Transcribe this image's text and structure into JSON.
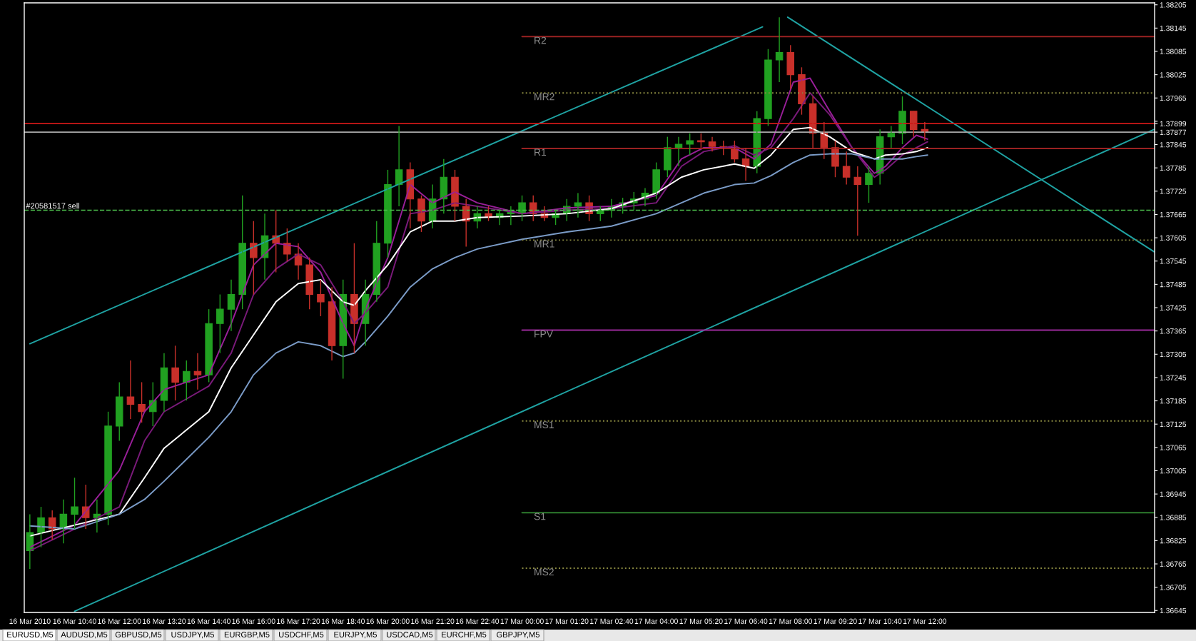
{
  "chart_data": {
    "type": "candlestick",
    "x": [
      "2010-03-16T09:20",
      "2010-03-16T09:40",
      "2010-03-16T10:00",
      "2010-03-16T10:20",
      "2010-03-16T10:40",
      "2010-03-16T11:00",
      "2010-03-16T11:20",
      "2010-03-16T11:40",
      "2010-03-16T12:00",
      "2010-03-16T12:20",
      "2010-03-16T12:40",
      "2010-03-16T13:00",
      "2010-03-16T13:20",
      "2010-03-16T13:40",
      "2010-03-16T14:00",
      "2010-03-16T14:20",
      "2010-03-16T14:40",
      "2010-03-16T15:00",
      "2010-03-16T15:20",
      "2010-03-16T15:40",
      "2010-03-16T16:00",
      "2010-03-16T16:20",
      "2010-03-16T16:40",
      "2010-03-16T17:00",
      "2010-03-16T17:20",
      "2010-03-16T17:40",
      "2010-03-16T18:00",
      "2010-03-16T18:20",
      "2010-03-16T18:40",
      "2010-03-16T19:00",
      "2010-03-16T19:20",
      "2010-03-16T19:40",
      "2010-03-16T20:00",
      "2010-03-16T20:20",
      "2010-03-16T20:40",
      "2010-03-16T21:00",
      "2010-03-16T21:20",
      "2010-03-16T21:40",
      "2010-03-16T22:00",
      "2010-03-16T22:20",
      "2010-03-16T22:40",
      "2010-03-16T23:00",
      "2010-03-16T23:20",
      "2010-03-16T23:40",
      "2010-03-17T00:00",
      "2010-03-17T00:20",
      "2010-03-17T00:40",
      "2010-03-17T01:00",
      "2010-03-17T01:20",
      "2010-03-17T01:40",
      "2010-03-17T02:00",
      "2010-03-17T02:20",
      "2010-03-17T02:40",
      "2010-03-17T03:00",
      "2010-03-17T03:20",
      "2010-03-17T03:40",
      "2010-03-17T04:00",
      "2010-03-17T04:20",
      "2010-03-17T04:40",
      "2010-03-17T05:00",
      "2010-03-17T05:20",
      "2010-03-17T05:40",
      "2010-03-17T06:00",
      "2010-03-17T06:20",
      "2010-03-17T06:40",
      "2010-03-17T07:00",
      "2010-03-17T07:20",
      "2010-03-17T07:40",
      "2010-03-17T08:00",
      "2010-03-17T08:20",
      "2010-03-17T08:40",
      "2010-03-17T09:00",
      "2010-03-17T09:20",
      "2010-03-17T09:40",
      "2010-03-17T10:00",
      "2010-03-17T10:20",
      "2010-03-17T10:40",
      "2010-03-17T11:00",
      "2010-03-17T11:20",
      "2010-03-17T11:40",
      "2010-03-17T12:00"
    ],
    "ohlc": [
      [
        1.36799,
        1.36893,
        1.36752,
        1.36846
      ],
      [
        1.36846,
        1.36912,
        1.36808,
        1.36884
      ],
      [
        1.36884,
        1.36903,
        1.36827,
        1.36855
      ],
      [
        1.36855,
        1.36931,
        1.36818,
        1.36893
      ],
      [
        1.36893,
        1.36987,
        1.36855,
        1.36912
      ],
      [
        1.36912,
        1.36969,
        1.36855,
        1.36884
      ],
      [
        1.36884,
        1.36931,
        1.36846,
        1.36893
      ],
      [
        1.36893,
        1.37157,
        1.36865,
        1.3712
      ],
      [
        1.3712,
        1.37233,
        1.37082,
        1.37195
      ],
      [
        1.37195,
        1.37289,
        1.37138,
        1.37176
      ],
      [
        1.37176,
        1.37233,
        1.37129,
        1.37157
      ],
      [
        1.37157,
        1.37233,
        1.3712,
        1.37186
      ],
      [
        1.37186,
        1.37308,
        1.37157,
        1.3727
      ],
      [
        1.3727,
        1.37327,
        1.37186,
        1.37233
      ],
      [
        1.37233,
        1.37289,
        1.37186,
        1.37261
      ],
      [
        1.37261,
        1.37308,
        1.37214,
        1.37252
      ],
      [
        1.37252,
        1.37421,
        1.37233,
        1.37384
      ],
      [
        1.37384,
        1.37459,
        1.37308,
        1.37421
      ],
      [
        1.37421,
        1.37497,
        1.37365,
        1.37459
      ],
      [
        1.37459,
        1.37714,
        1.37421,
        1.37591
      ],
      [
        1.37591,
        1.37648,
        1.37459,
        1.37554
      ],
      [
        1.37554,
        1.37667,
        1.37497,
        1.3761
      ],
      [
        1.3761,
        1.37676,
        1.37516,
        1.37591
      ],
      [
        1.37591,
        1.37629,
        1.37544,
        1.37563
      ],
      [
        1.37563,
        1.37591,
        1.37497,
        1.37535
      ],
      [
        1.37535,
        1.37554,
        1.37421,
        1.37459
      ],
      [
        1.37459,
        1.37497,
        1.37403,
        1.3744
      ],
      [
        1.3744,
        1.37478,
        1.37289,
        1.37327
      ],
      [
        1.37327,
        1.37497,
        1.37242,
        1.37459
      ],
      [
        1.37459,
        1.37591,
        1.37308,
        1.37384
      ],
      [
        1.37384,
        1.37497,
        1.37327,
        1.37459
      ],
      [
        1.37459,
        1.37648,
        1.3744,
        1.37591
      ],
      [
        1.37591,
        1.3778,
        1.37554,
        1.37742
      ],
      [
        1.37742,
        1.37893,
        1.37686,
        1.3778
      ],
      [
        1.3778,
        1.37799,
        1.37629,
        1.37705
      ],
      [
        1.37705,
        1.37714,
        1.3762,
        1.37648
      ],
      [
        1.37648,
        1.37742,
        1.37629,
        1.37705
      ],
      [
        1.37705,
        1.37808,
        1.37667,
        1.37761
      ],
      [
        1.37761,
        1.3778,
        1.37648,
        1.37686
      ],
      [
        1.37686,
        1.37705,
        1.37582,
        1.37648
      ],
      [
        1.37648,
        1.37686,
        1.37629,
        1.37667
      ],
      [
        1.37667,
        1.37686,
        1.37648,
        1.37657
      ],
      [
        1.37657,
        1.37676,
        1.37638,
        1.37667
      ],
      [
        1.37667,
        1.37686,
        1.37638,
        1.37676
      ],
      [
        1.37667,
        1.37714,
        1.37648,
        1.37695
      ],
      [
        1.37695,
        1.37714,
        1.37648,
        1.37667
      ],
      [
        1.37667,
        1.37686,
        1.37648,
        1.37657
      ],
      [
        1.37657,
        1.37676,
        1.37638,
        1.37667
      ],
      [
        1.37667,
        1.37705,
        1.37648,
        1.37686
      ],
      [
        1.37686,
        1.3772,
        1.37657,
        1.37695
      ],
      [
        1.37695,
        1.37714,
        1.37648,
        1.37667
      ],
      [
        1.37667,
        1.37686,
        1.37648,
        1.37676
      ],
      [
        1.37676,
        1.37705,
        1.37657,
        1.37686
      ],
      [
        1.37686,
        1.37708,
        1.37667,
        1.37695
      ],
      [
        1.37695,
        1.37723,
        1.37676,
        1.37705
      ],
      [
        1.37705,
        1.37733,
        1.37686,
        1.3772
      ],
      [
        1.3772,
        1.37799,
        1.37705,
        1.3778
      ],
      [
        1.3778,
        1.37865,
        1.37761,
        1.37837
      ],
      [
        1.37837,
        1.37865,
        1.37789,
        1.37846
      ],
      [
        1.37846,
        1.37874,
        1.37818,
        1.37855
      ],
      [
        1.37855,
        1.37874,
        1.37837,
        1.37852
      ],
      [
        1.37852,
        1.37865,
        1.37827,
        1.3784
      ],
      [
        1.3784,
        1.37855,
        1.37818,
        1.37837
      ],
      [
        1.37837,
        1.37855,
        1.37799,
        1.37808
      ],
      [
        1.37808,
        1.37837,
        1.37752,
        1.37789
      ],
      [
        1.37789,
        1.37931,
        1.37771,
        1.37912
      ],
      [
        1.37912,
        1.38091,
        1.37893,
        1.38063
      ],
      [
        1.38063,
        1.38173,
        1.38006,
        1.38082
      ],
      [
        1.38082,
        1.38101,
        1.37988,
        1.38025
      ],
      [
        1.38025,
        1.38044,
        1.37922,
        1.3795
      ],
      [
        1.3795,
        1.37969,
        1.37837,
        1.37874
      ],
      [
        1.37874,
        1.37903,
        1.37808,
        1.37837
      ],
      [
        1.37837,
        1.37855,
        1.37761,
        1.37789
      ],
      [
        1.37789,
        1.37827,
        1.37742,
        1.37761
      ],
      [
        1.37761,
        1.37789,
        1.3761,
        1.37742
      ],
      [
        1.37742,
        1.37789,
        1.37695,
        1.37771
      ],
      [
        1.37771,
        1.37884,
        1.37742,
        1.37865
      ],
      [
        1.37865,
        1.37893,
        1.37837,
        1.37874
      ],
      [
        1.37874,
        1.37969,
        1.37846,
        1.37931
      ],
      [
        1.37931,
        1.37931,
        1.37865,
        1.37884
      ],
      [
        1.37884,
        1.37903,
        1.37855,
        1.37877
      ]
    ],
    "colors": [
      "#21a121",
      "#21a121",
      "#c8302a",
      "#21a121",
      "#21a121",
      "#c8302a",
      "#21a121",
      "#21a121",
      "#21a121",
      "#c8302a",
      "#c8302a",
      "#21a121",
      "#21a121",
      "#c8302a",
      "#21a121",
      "#c8302a",
      "#21a121",
      "#21a121",
      "#21a121",
      "#21a121",
      "#c8302a",
      "#21a121",
      "#c8302a",
      "#c8302a",
      "#c8302a",
      "#c8302a",
      "#c8302a",
      "#c8302a",
      "#21a121",
      "#c8302a",
      "#21a121",
      "#21a121",
      "#21a121",
      "#21a121",
      "#c8302a",
      "#c8302a",
      "#21a121",
      "#21a121",
      "#c8302a",
      "#c8302a",
      "#21a121",
      "#c8302a",
      "#21a121",
      "#21a121",
      "#21a121",
      "#c8302a",
      "#c8302a",
      "#21a121",
      "#21a121",
      "#21a121",
      "#c8302a",
      "#21a121",
      "#21a121",
      "#21a121",
      "#21a121",
      "#21a121",
      "#21a121",
      "#21a121",
      "#21a121",
      "#21a121",
      "#c8302a",
      "#c8302a",
      "#c8302a",
      "#c8302a",
      "#c8302a",
      "#21a121",
      "#21a121",
      "#21a121",
      "#c8302a",
      "#c8302a",
      "#c8302a",
      "#c8302a",
      "#c8302a",
      "#c8302a",
      "#c8302a",
      "#21a121",
      "#21a121",
      "#21a121",
      "#21a121",
      "#c8302a",
      "#c8302a"
    ],
    "series": [
      {
        "type": "line",
        "color": "#9a1f9a",
        "x": [
          "2010-03-16T09:20",
          "2010-03-16T10:40",
          "2010-03-16T12:00",
          "2010-03-16T12:45",
          "2010-03-16T13:20",
          "2010-03-16T14:40",
          "2010-03-16T15:20",
          "2010-03-16T16:00",
          "2010-03-16T16:40",
          "2010-03-16T17:20",
          "2010-03-16T18:00",
          "2010-03-16T18:40",
          "2010-03-16T19:00",
          "2010-03-16T19:20",
          "2010-03-16T20:00",
          "2010-03-16T20:40",
          "2010-03-16T21:20",
          "2010-03-16T22:00",
          "2010-03-16T22:40",
          "2010-03-17T00:00",
          "2010-03-17T01:20",
          "2010-03-17T02:40",
          "2010-03-17T04:00",
          "2010-03-17T04:45",
          "2010-03-17T05:25",
          "2010-03-17T06:20",
          "2010-03-17T06:55",
          "2010-03-17T07:25",
          "2010-03-17T08:05",
          "2010-03-17T08:35",
          "2010-03-17T09:10",
          "2010-03-17T09:50",
          "2010-03-17T10:30",
          "2010-03-17T10:50",
          "2010-03-17T11:20",
          "2010-03-17T11:45",
          "2010-03-17T12:05"
        ],
        "values": [
          1.36808,
          1.36865,
          1.37006,
          1.37157,
          1.37214,
          1.37252,
          1.37384,
          1.37535,
          1.37591,
          1.37582,
          1.37516,
          1.37384,
          1.37327,
          1.37421,
          1.37554,
          1.37742,
          1.37695,
          1.37723,
          1.37695,
          1.37667,
          1.37682,
          1.37686,
          1.37714,
          1.37808,
          1.37837,
          1.37837,
          1.37808,
          1.37846,
          1.38006,
          1.38016,
          1.37931,
          1.37837,
          1.37771,
          1.37789,
          1.37837,
          1.37869,
          1.37859
        ]
      },
      {
        "type": "line",
        "color": "#7a1a7a",
        "x": [
          "2010-03-16T09:20",
          "2010-03-16T10:40",
          "2010-03-16T12:00",
          "2010-03-16T12:45",
          "2010-03-16T13:20",
          "2010-03-16T14:40",
          "2010-03-16T15:20",
          "2010-03-16T16:00",
          "2010-03-16T16:40",
          "2010-03-16T17:20",
          "2010-03-16T18:00",
          "2010-03-16T18:40",
          "2010-03-16T19:00",
          "2010-03-16T19:20",
          "2010-03-16T20:00",
          "2010-03-16T20:40",
          "2010-03-16T21:20",
          "2010-03-16T22:00",
          "2010-03-16T22:40",
          "2010-03-17T00:00",
          "2010-03-17T01:20",
          "2010-03-17T02:40",
          "2010-03-17T04:00",
          "2010-03-17T04:45",
          "2010-03-17T05:25",
          "2010-03-17T06:20",
          "2010-03-17T06:55",
          "2010-03-17T07:25",
          "2010-03-17T08:05",
          "2010-03-17T08:35",
          "2010-03-17T09:10",
          "2010-03-17T09:50",
          "2010-03-17T10:30",
          "2010-03-17T10:50",
          "2010-03-17T11:20",
          "2010-03-17T11:45",
          "2010-03-17T12:05"
        ],
        "values": [
          1.36799,
          1.36855,
          1.36912,
          1.37082,
          1.37157,
          1.37223,
          1.37308,
          1.37459,
          1.37525,
          1.37563,
          1.37535,
          1.3744,
          1.37384,
          1.37412,
          1.37478,
          1.37667,
          1.37676,
          1.37695,
          1.37686,
          1.37667,
          1.37676,
          1.3768,
          1.37695,
          1.37789,
          1.37827,
          1.37842,
          1.37818,
          1.37837,
          1.37912,
          1.37978,
          1.37922,
          1.37837,
          1.37761,
          1.3778,
          1.37818,
          1.37837,
          1.37852
        ]
      },
      {
        "type": "line",
        "color": "#ffffff",
        "x": [
          "2010-03-16T09:20",
          "2010-03-16T10:40",
          "2010-03-16T12:00",
          "2010-03-16T12:45",
          "2010-03-16T13:20",
          "2010-03-16T14:40",
          "2010-03-16T15:20",
          "2010-03-16T16:00",
          "2010-03-16T16:40",
          "2010-03-16T17:20",
          "2010-03-16T18:00",
          "2010-03-16T18:40",
          "2010-03-16T19:00",
          "2010-03-16T19:20",
          "2010-03-16T20:00",
          "2010-03-16T20:40",
          "2010-03-16T21:20",
          "2010-03-16T22:00",
          "2010-03-16T22:40",
          "2010-03-17T00:00",
          "2010-03-17T01:20",
          "2010-03-17T02:40",
          "2010-03-17T04:00",
          "2010-03-17T04:45",
          "2010-03-17T05:25",
          "2010-03-17T06:20",
          "2010-03-17T06:55",
          "2010-03-17T07:25",
          "2010-03-17T08:05",
          "2010-03-17T08:35",
          "2010-03-17T09:10",
          "2010-03-17T09:50",
          "2010-03-17T10:30",
          "2010-03-17T10:50",
          "2010-03-17T11:20",
          "2010-03-17T11:45",
          "2010-03-17T12:05"
        ],
        "values": [
          1.36837,
          1.36865,
          1.36893,
          1.36987,
          1.37063,
          1.37157,
          1.3727,
          1.37355,
          1.3744,
          1.37487,
          1.37497,
          1.3744,
          1.37431,
          1.37469,
          1.37535,
          1.3762,
          1.37648,
          1.37648,
          1.37657,
          1.37661,
          1.37667,
          1.3768,
          1.3772,
          1.37761,
          1.3778,
          1.37795,
          1.37784,
          1.37818,
          1.37884,
          1.37889,
          1.37865,
          1.37827,
          1.37808,
          1.37818,
          1.37821,
          1.37827,
          1.37837
        ]
      },
      {
        "type": "line",
        "color": "#7b9cc8",
        "x": [
          "2010-03-16T09:20",
          "2010-03-16T10:40",
          "2010-03-16T12:00",
          "2010-03-16T12:45",
          "2010-03-16T13:20",
          "2010-03-16T14:40",
          "2010-03-16T15:20",
          "2010-03-16T16:00",
          "2010-03-16T16:40",
          "2010-03-16T17:20",
          "2010-03-16T18:00",
          "2010-03-16T18:40",
          "2010-03-16T19:00",
          "2010-03-16T19:20",
          "2010-03-16T20:00",
          "2010-03-16T20:40",
          "2010-03-16T21:20",
          "2010-03-16T22:00",
          "2010-03-16T22:40",
          "2010-03-17T00:00",
          "2010-03-17T01:20",
          "2010-03-17T02:40",
          "2010-03-17T04:00",
          "2010-03-17T04:45",
          "2010-03-17T05:25",
          "2010-03-17T06:20",
          "2010-03-17T06:55",
          "2010-03-17T07:25",
          "2010-03-17T08:05",
          "2010-03-17T08:35",
          "2010-03-17T09:10",
          "2010-03-17T09:50",
          "2010-03-17T10:30",
          "2010-03-17T10:50",
          "2010-03-17T11:20",
          "2010-03-17T11:45",
          "2010-03-17T12:05"
        ],
        "values": [
          1.36863,
          1.36855,
          1.36893,
          1.36931,
          1.36978,
          1.37091,
          1.37157,
          1.37252,
          1.37308,
          1.37337,
          1.37327,
          1.37299,
          1.37308,
          1.37337,
          1.37403,
          1.37478,
          1.37525,
          1.37554,
          1.37576,
          1.37601,
          1.3762,
          1.37635,
          1.37667,
          1.37695,
          1.3772,
          1.37742,
          1.37746,
          1.37765,
          1.37799,
          1.37818,
          1.37821,
          1.37821,
          1.37808,
          1.37808,
          1.37808,
          1.37814,
          1.37818
        ]
      },
      {
        "type": "line",
        "color": "#1fa3a3",
        "x": [
          "2010-03-16T09:20",
          "2010-03-17T07:10"
        ],
        "values": [
          1.37332,
          1.38148
        ]
      },
      {
        "type": "line",
        "color": "#1fa3a3",
        "x": [
          "2010-03-16T10:40",
          "2010-03-17T18:50"
        ],
        "values": [
          1.36643,
          1.37884
        ]
      },
      {
        "type": "line",
        "color": "#1fa3a3",
        "x": [
          "2010-03-17T07:55",
          "2010-03-17T18:50"
        ],
        "values": [
          1.38173,
          1.37569
        ]
      },
      {
        "type": "line",
        "name": "R2",
        "color": "#9b2222",
        "line_style": "solid",
        "x": [
          "2010-03-17T00:00",
          "2010-03-17T18:51"
        ],
        "values": [
          1.38123,
          1.38123
        ]
      },
      {
        "type": "line",
        "name": "MR2",
        "color": "#8a8a40",
        "line_style": "dotted",
        "x": [
          "2010-03-17T00:00",
          "2010-03-17T18:51"
        ],
        "values": [
          1.37978,
          1.37978
        ]
      },
      {
        "type": "line",
        "name": "R1",
        "color": "#9b2222",
        "line_style": "solid",
        "x": [
          "2010-03-17T00:00",
          "2010-03-17T18:51"
        ],
        "values": [
          1.37835,
          1.37835
        ]
      },
      {
        "type": "line",
        "name": "MR1",
        "color": "#8a8a40",
        "line_style": "dotted",
        "x": [
          "2010-03-17T00:00",
          "2010-03-17T18:51"
        ],
        "values": [
          1.37599,
          1.37599
        ]
      },
      {
        "type": "line",
        "name": "FPV",
        "color": "#9a2a9a",
        "line_style": "solid",
        "x": [
          "2010-03-17T00:00",
          "2010-03-17T18:51"
        ],
        "values": [
          1.37367,
          1.37367
        ]
      },
      {
        "type": "line",
        "name": "MS1",
        "color": "#8a8a40",
        "line_style": "dotted",
        "x": [
          "2010-03-17T00:00",
          "2010-03-17T18:51"
        ],
        "values": [
          1.37133,
          1.37133
        ]
      },
      {
        "type": "line",
        "name": "S1",
        "color": "#2e7d2e",
        "line_style": "solid",
        "x": [
          "2010-03-17T00:00",
          "2010-03-17T18:51"
        ],
        "values": [
          1.36897,
          1.36897
        ]
      },
      {
        "type": "line",
        "name": "MS2",
        "color": "#8a8a40",
        "line_style": "dotted",
        "x": [
          "2010-03-17T00:00",
          "2010-03-17T18:51"
        ],
        "values": [
          1.36754,
          1.36754
        ]
      }
    ],
    "ref_lines": [
      {
        "axis": "y",
        "value": 1.37899,
        "color": "#d01818"
      },
      {
        "axis": "y",
        "value": 1.37877,
        "color": "#a8a8a8"
      },
      {
        "axis": "y",
        "value": 1.37676,
        "label": "#20581517 sell",
        "color": "#4cc04c",
        "line_style": "dashed"
      }
    ],
    "xlim": [
      "2010-03-16T09:10",
      "2010-03-17T18:51"
    ],
    "xticks": [
      {
        "value": "2010-03-16T09:20",
        "label": "16 Mar 2010"
      },
      {
        "value": "2010-03-16T10:40",
        "label": "16 Mar 10:40"
      },
      {
        "value": "2010-03-16T12:00",
        "label": "16 Mar 12:00"
      },
      {
        "value": "2010-03-16T13:20",
        "label": "16 Mar 13:20"
      },
      {
        "value": "2010-03-16T14:40",
        "label": "16 Mar 14:40"
      },
      {
        "value": "2010-03-16T16:00",
        "label": "16 Mar 16:00"
      },
      {
        "value": "2010-03-16T17:20",
        "label": "16 Mar 17:20"
      },
      {
        "value": "2010-03-16T18:40",
        "label": "16 Mar 18:40"
      },
      {
        "value": "2010-03-16T20:00",
        "label": "16 Mar 20:00"
      },
      {
        "value": "2010-03-16T21:20",
        "label": "16 Mar 21:20"
      },
      {
        "value": "2010-03-16T22:40",
        "label": "16 Mar 22:40"
      },
      {
        "value": "2010-03-17T00:00",
        "label": "17 Mar 00:00"
      },
      {
        "value": "2010-03-17T01:20",
        "label": "17 Mar 01:20"
      },
      {
        "value": "2010-03-17T02:40",
        "label": "17 Mar 02:40"
      },
      {
        "value": "2010-03-17T04:00",
        "label": "17 Mar 04:00"
      },
      {
        "value": "2010-03-17T05:20",
        "label": "17 Mar 05:20"
      },
      {
        "value": "2010-03-17T06:40",
        "label": "17 Mar 06:40"
      },
      {
        "value": "2010-03-17T08:00",
        "label": "17 Mar 08:00"
      },
      {
        "value": "2010-03-17T09:20",
        "label": "17 Mar 09:20"
      },
      {
        "value": "2010-03-17T10:40",
        "label": "17 Mar 10:40"
      },
      {
        "value": "2010-03-17T12:00",
        "label": "17 Mar 12:00"
      }
    ],
    "ylim": [
      1.3664,
      1.3821
    ],
    "yticks": [
      1.38205,
      1.38145,
      1.38085,
      1.38025,
      1.37965,
      {
        "value": 1.37905,
        "label": null
      },
      1.37899,
      1.37877,
      1.37845,
      1.37785,
      1.37725,
      1.37665,
      1.37605,
      1.37545,
      1.37485,
      1.37425,
      1.37365,
      1.37305,
      1.37245,
      1.37185,
      1.37125,
      1.37065,
      1.37005,
      1.36945,
      1.36885,
      1.36825,
      1.36765,
      1.36705,
      1.36645
    ],
    "grid": false,
    "legend": false,
    "annotations": [
      "EURUSD,M5",
      "AUDUSD,M5",
      "GBPUSD,M5",
      "USDJPY,M5",
      "EURGBP,M5",
      "USDCHF,M5",
      "EURJPY,M5",
      "USDCAD,M5",
      "EURCHF,M5",
      "GBPJPY,M5"
    ]
  }
}
